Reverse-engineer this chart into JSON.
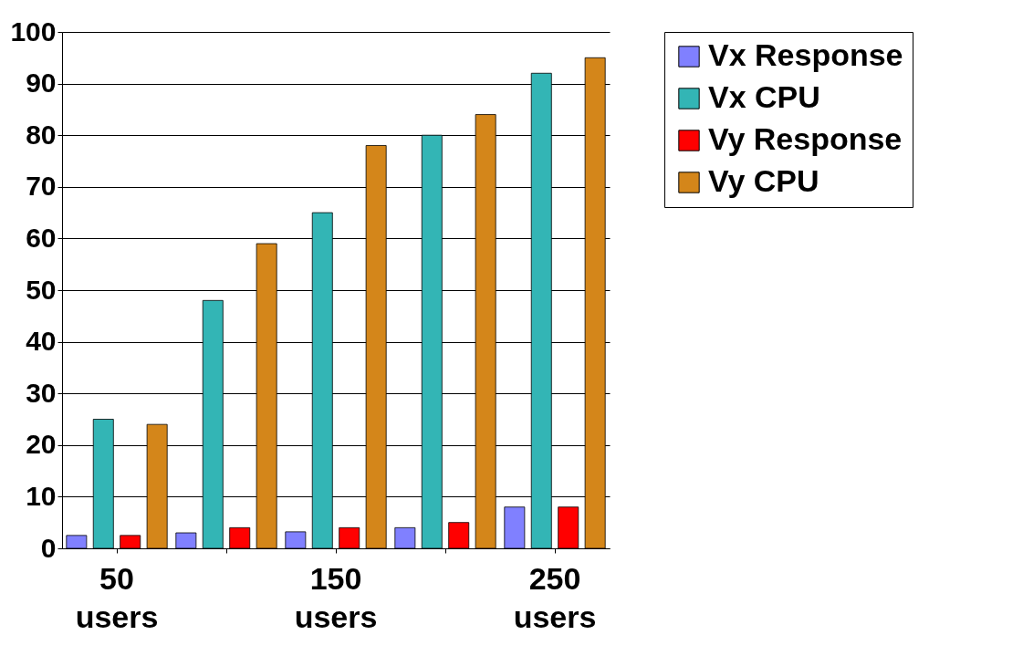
{
  "chart_data": {
    "type": "bar",
    "categories": [
      "50 users",
      null,
      "150 users",
      null,
      "250 users"
    ],
    "series": [
      {
        "name": "Vx Response",
        "color": "#8080ff",
        "values": [
          2.5,
          3,
          3.2,
          4,
          8
        ]
      },
      {
        "name": "Vx CPU",
        "color": "#33b5b5",
        "values": [
          25,
          48,
          65,
          80,
          92
        ]
      },
      {
        "name": "Vy Response",
        "color": "#ff0000",
        "values": [
          2.5,
          4,
          4,
          5,
          8
        ]
      },
      {
        "name": "Vy CPU",
        "color": "#d4861a",
        "values": [
          24,
          59,
          78,
          84,
          95
        ]
      }
    ],
    "ylim": [
      0,
      100
    ],
    "yticks": [
      0,
      10,
      20,
      30,
      40,
      50,
      60,
      70,
      80,
      90,
      100
    ],
    "grid": "y",
    "legend": "right"
  }
}
